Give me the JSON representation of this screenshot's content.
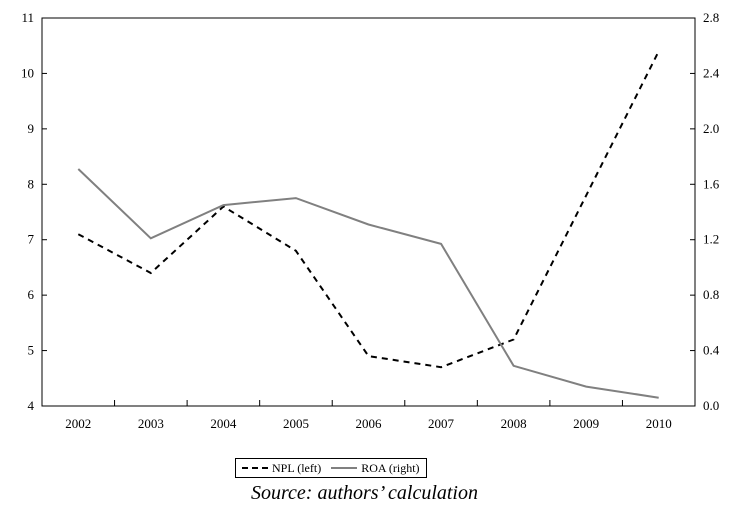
{
  "chart_data": {
    "type": "line",
    "categories": [
      "2002",
      "2003",
      "2004",
      "2005",
      "2006",
      "2007",
      "2008",
      "2009",
      "2010"
    ],
    "series": [
      {
        "name": "NPL (left)",
        "axis": "left",
        "style": "dashed",
        "color": "#000000",
        "values": [
          7.1,
          6.4,
          7.6,
          6.8,
          4.9,
          4.7,
          5.2,
          7.8,
          10.4
        ]
      },
      {
        "name": "ROA (right)",
        "axis": "right",
        "style": "solid",
        "color": "#808080",
        "values": [
          1.71,
          1.21,
          1.45,
          1.5,
          1.31,
          1.17,
          0.29,
          0.14,
          0.06
        ]
      }
    ],
    "y_left": {
      "lim": [
        4,
        11
      ],
      "ticks": [
        "4",
        "5",
        "6",
        "7",
        "8",
        "9",
        "10",
        "11"
      ]
    },
    "y_right": {
      "lim": [
        0,
        2.8
      ],
      "ticks": [
        "0.0",
        "0.4",
        "0.8",
        "1.2",
        "1.6",
        "2.0",
        "2.4",
        "2.8"
      ]
    },
    "grid": false,
    "legend_position": "bottom-center"
  },
  "caption": "Source: authors’ calculation"
}
